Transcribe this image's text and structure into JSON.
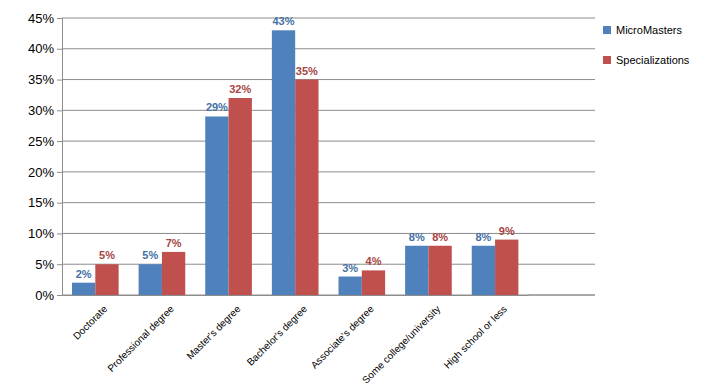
{
  "chart_data": {
    "type": "bar",
    "categories": [
      "Doctorate",
      "Professional degree",
      "Master's degree",
      "Bachelor's degree",
      "Associate's degree",
      "Some college/university",
      "High school or less"
    ],
    "series": [
      {
        "name": "MicroMasters",
        "color": "#4f81bd",
        "values": [
          2,
          5,
          29,
          43,
          3,
          8,
          8
        ],
        "value_labels": [
          "2%",
          "5%",
          "29%",
          "43%",
          "3%",
          "8%",
          "8%"
        ]
      },
      {
        "name": "Specializations",
        "color": "#c0504d",
        "values": [
          5,
          7,
          32,
          35,
          4,
          8,
          9
        ],
        "value_labels": [
          "5%",
          "7%",
          "32%",
          "35%",
          "4%",
          "8%",
          "9%"
        ]
      }
    ],
    "ylim": [
      0,
      45
    ],
    "yticks": [
      {
        "value": 0,
        "label": "0%"
      },
      {
        "value": 5,
        "label": "5%"
      },
      {
        "value": 10,
        "label": "10%"
      },
      {
        "value": 15,
        "label": "15%"
      },
      {
        "value": 20,
        "label": "20%"
      },
      {
        "value": 25,
        "label": "25%"
      },
      {
        "value": 30,
        "label": "30%"
      },
      {
        "value": 35,
        "label": "35%"
      },
      {
        "value": 40,
        "label": "40%"
      },
      {
        "value": 45,
        "label": "45%"
      }
    ],
    "grid": true,
    "data_labels": true,
    "legend": "right"
  }
}
